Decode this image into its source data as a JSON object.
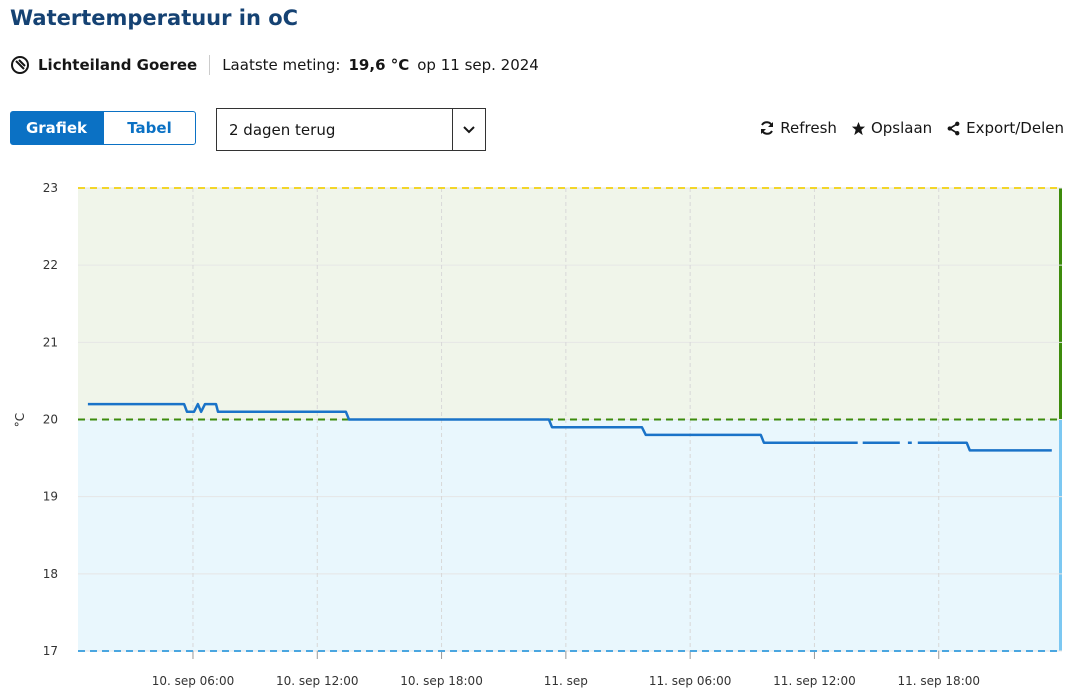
{
  "header": {
    "title": "Watertemperatuur in oC",
    "location": "Lichteiland Goeree",
    "last_label": "Laatste meting:",
    "last_value": "19,6 °C",
    "last_date": "op 11 sep. 2024"
  },
  "tabs": [
    "Grafiek",
    "Tabel"
  ],
  "dropdown": "2 dagen terug",
  "actions": [
    "Refresh",
    "Opslaan",
    "Export/Delen"
  ],
  "chart_data": {
    "type": "line",
    "y_label": "°C",
    "color": "#1a73c8",
    "x": [
      0.93,
      5.57,
      5.71,
      6.05,
      6.24,
      6.39,
      6.58,
      7.11,
      7.21,
      13.38,
      13.53,
      23.18,
      23.33,
      27.67,
      27.86,
      33.41,
      33.56,
      38.09,
      null,
      38.33,
      40.12,
      null,
      40.51,
      40.7,
      null,
      40.99,
      43.35,
      43.5,
      47.46
    ],
    "values": [
      20.2,
      20.2,
      20.1,
      20.1,
      20.2,
      20.1,
      20.2,
      20.2,
      20.1,
      20.1,
      20.0,
      20.0,
      19.9,
      19.9,
      19.8,
      19.8,
      19.7,
      19.7,
      null,
      19.7,
      19.7,
      null,
      19.7,
      19.7,
      null,
      19.7,
      19.7,
      19.6,
      19.6
    ],
    "xlim": [
      0.45,
      47.95
    ],
    "xticks": [
      {
        "value": 6,
        "label": "10. sep 06:00"
      },
      {
        "value": 12,
        "label": "10. sep 12:00"
      },
      {
        "value": 18,
        "label": "10. sep 18:00"
      },
      {
        "value": 24,
        "label": "11. sep"
      },
      {
        "value": 30,
        "label": "11. sep 06:00"
      },
      {
        "value": 36,
        "label": "11. sep 12:00"
      },
      {
        "value": 42,
        "label": "11. sep 18:00"
      }
    ],
    "ylim": [
      17,
      23
    ],
    "yticks": [
      17,
      18,
      19,
      20,
      21,
      22,
      23
    ],
    "grid": true,
    "thresholds": [
      {
        "value": 23,
        "color": "#f2d52a"
      },
      {
        "value": 20,
        "color": "#3d8b0c"
      },
      {
        "value": 17,
        "color": "#4aa6e0"
      }
    ]
  }
}
